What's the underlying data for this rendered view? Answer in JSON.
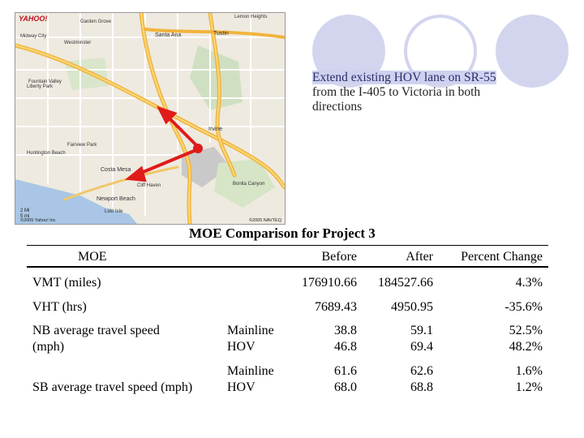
{
  "map": {
    "brand": "YAHOO!",
    "scale_label": "2 Mi\n5 mi",
    "copyright": "©2005 Yahoo! Inc",
    "copyright_right": "©2005 NAVTEQ",
    "labels": [
      {
        "text": "Lemon Heights"
      },
      {
        "text": "Santa Ana"
      },
      {
        "text": "Tustin"
      },
      {
        "text": "Garden Grove"
      },
      {
        "text": "Midway City"
      },
      {
        "text": "Westminster"
      },
      {
        "text": "Fountain Valley"
      },
      {
        "text": "Irvine"
      },
      {
        "text": "Costa Mesa"
      },
      {
        "text": "Newport Beach"
      },
      {
        "text": "Huntington Beach"
      },
      {
        "text": "Liberty Park"
      },
      {
        "text": "Fairview Park"
      },
      {
        "text": "Bonita Canyon"
      },
      {
        "text": "Lido Isle"
      },
      {
        "text": "Cliff Haven"
      }
    ]
  },
  "description": {
    "line1_highlight": "Extend existing HOV lane on SR-55",
    "line2": "from the I-405 to Victoria in both",
    "line3": "directions"
  },
  "table": {
    "title": "MOE Comparison for Project 3",
    "headers": {
      "moe": "MOE",
      "before": "Before",
      "after": "After",
      "pct": "Percent Change"
    },
    "rows": [
      {
        "moe": "VMT (miles)",
        "sub": "",
        "before": "176910.66",
        "after": "184527.66",
        "pct": "4.3%"
      },
      {
        "moe": "VHT (hrs)",
        "sub": "",
        "before": "7689.43",
        "after": "4950.95",
        "pct": "-35.6%"
      },
      {
        "moe": "NB average travel speed",
        "sub": "Mainline",
        "before": "38.8",
        "after": "59.1",
        "pct": "52.5%"
      },
      {
        "moe": "(mph)",
        "sub": "HOV",
        "before": "46.8",
        "after": "69.4",
        "pct": "48.2%"
      },
      {
        "moe": "",
        "sub": "Mainline",
        "before": "61.6",
        "after": "62.6",
        "pct": "1.6%"
      },
      {
        "moe": "SB average travel speed (mph)",
        "sub": "HOV",
        "before": "68.0",
        "after": "68.8",
        "pct": "1.2%"
      }
    ]
  }
}
